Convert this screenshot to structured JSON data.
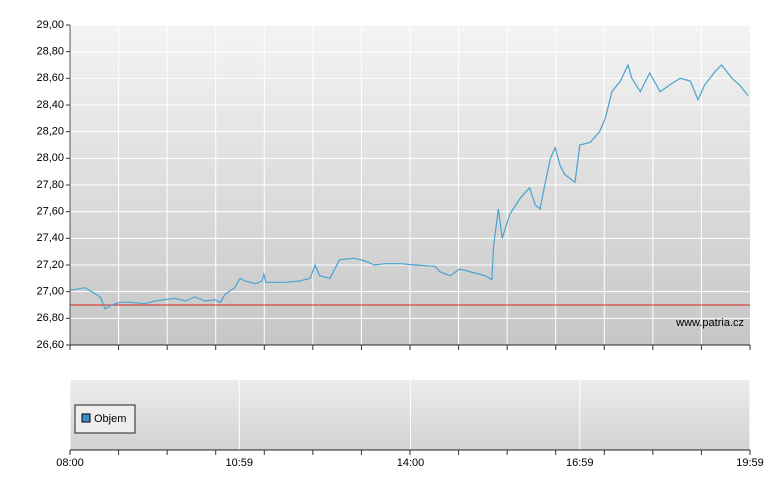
{
  "chart_data": [
    {
      "type": "line",
      "watermark": "www.patria.cz",
      "ylim": [
        26.6,
        29.0
      ],
      "yticks": [
        {
          "value": 26.6,
          "label": "26,60"
        },
        {
          "value": 26.8,
          "label": "26,80"
        },
        {
          "value": 27.0,
          "label": "27,00"
        },
        {
          "value": 27.2,
          "label": "27,20"
        },
        {
          "value": 27.4,
          "label": "27,40"
        },
        {
          "value": 27.6,
          "label": "27,60"
        },
        {
          "value": 27.8,
          "label": "27,80"
        },
        {
          "value": 28.0,
          "label": "28,00"
        },
        {
          "value": 28.2,
          "label": "28,20"
        },
        {
          "value": 28.4,
          "label": "28,40"
        },
        {
          "value": 28.6,
          "label": "28,60"
        },
        {
          "value": 28.8,
          "label": "28,80"
        },
        {
          "value": 29.0,
          "label": "29,00"
        }
      ],
      "xlim": [
        "08:00",
        "19:59"
      ],
      "reference_line": 26.9,
      "reference_color": "#dd2222",
      "grid": true,
      "x": [
        "08:00",
        "08:16",
        "08:23",
        "08:32",
        "08:37",
        "08:44",
        "08:53",
        "09:03",
        "09:19",
        "09:30",
        "09:40",
        "09:51",
        "10:02",
        "10:12",
        "10:23",
        "10:33",
        "10:39",
        "10:44",
        "10:54",
        "11:00",
        "11:05",
        "11:16",
        "11:23",
        "11:25",
        "11:27",
        "11:47",
        "12:03",
        "12:14",
        "12:19",
        "12:24",
        "12:35",
        "12:45",
        "13:01",
        "13:12",
        "13:22",
        "13:33",
        "13:49",
        "14:05",
        "14:26",
        "14:31",
        "14:42",
        "14:52",
        "15:08",
        "15:19",
        "15:26",
        "15:28",
        "15:33",
        "15:37",
        "15:45",
        "15:56",
        "16:06",
        "16:12",
        "16:17",
        "16:22",
        "16:28",
        "16:33",
        "16:38",
        "16:43",
        "16:54",
        "16:59",
        "17:10",
        "17:20",
        "17:26",
        "17:33",
        "17:42",
        "17:50",
        "17:54",
        "18:03",
        "18:13",
        "18:24",
        "18:34",
        "18:45",
        "18:56",
        "19:04",
        "19:11",
        "19:22",
        "19:29",
        "19:40",
        "19:48",
        "19:57"
      ],
      "series": [
        {
          "color": "#4aa3d0",
          "values": [
            27.01,
            27.03,
            27.0,
            26.96,
            26.87,
            26.9,
            26.92,
            26.92,
            26.91,
            26.93,
            26.94,
            26.95,
            26.93,
            26.96,
            26.93,
            26.94,
            26.92,
            26.98,
            27.03,
            27.1,
            27.08,
            27.06,
            27.08,
            27.13,
            27.07,
            27.07,
            27.08,
            27.1,
            27.2,
            27.12,
            27.1,
            27.24,
            27.25,
            27.23,
            27.2,
            27.21,
            27.21,
            27.2,
            27.19,
            27.15,
            27.12,
            27.17,
            27.14,
            27.12,
            27.09,
            27.35,
            27.62,
            27.4,
            27.58,
            27.7,
            27.78,
            27.65,
            27.62,
            27.8,
            28.0,
            28.08,
            27.95,
            27.88,
            27.82,
            28.1,
            28.12,
            28.2,
            28.3,
            28.5,
            28.58,
            28.7,
            28.6,
            28.5,
            28.64,
            28.5,
            28.55,
            28.6,
            28.58,
            28.44,
            28.55,
            28.65,
            28.7,
            28.6,
            28.55,
            28.47
          ]
        }
      ]
    },
    {
      "type": "bar",
      "xlim": [
        "08:00",
        "19:59"
      ],
      "xticks": [
        "08:00",
        "10:59",
        "14:00",
        "16:59",
        "19:59"
      ],
      "series": [
        {
          "name": "Objem",
          "color": "#3a8fc8",
          "values": []
        }
      ]
    }
  ]
}
